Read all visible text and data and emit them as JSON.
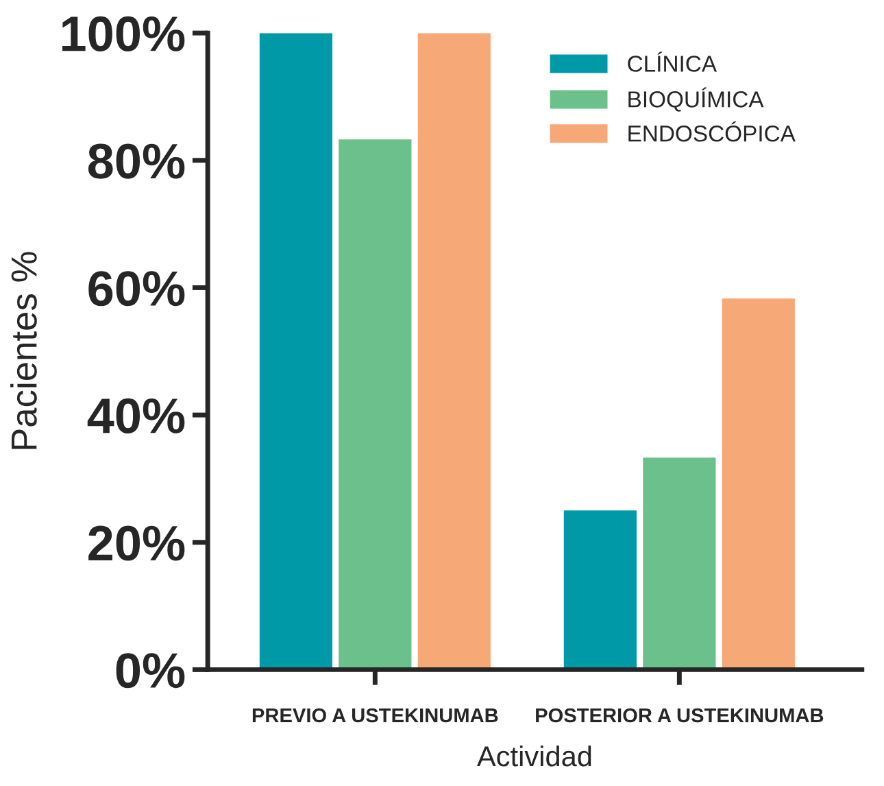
{
  "chart_data": {
    "type": "bar",
    "xlabel": "Actividad",
    "ylabel": "Pacientes %",
    "categories": [
      "PREVIO A USTEKINUMAB",
      "POSTERIOR A USTEKINUMAB"
    ],
    "series": [
      {
        "name": "CLÍNICA",
        "color": "#0099a8",
        "values": [
          100,
          25
        ]
      },
      {
        "name": "BIOQUÍMICA",
        "color": "#6cc08b",
        "values": [
          83.3,
          33.3
        ]
      },
      {
        "name": "ENDOSCÓPICA",
        "color": "#f6a877",
        "values": [
          100,
          58.3
        ]
      }
    ],
    "ylim": [
      0,
      100
    ],
    "yticks": [
      {
        "value": 0,
        "label": "0%"
      },
      {
        "value": 20,
        "label": "20%"
      },
      {
        "value": 40,
        "label": "40%"
      },
      {
        "value": 60,
        "label": "60%"
      },
      {
        "value": 80,
        "label": "80%"
      },
      {
        "value": 100,
        "label": "100%"
      }
    ],
    "grid": false,
    "legend": "top right"
  }
}
